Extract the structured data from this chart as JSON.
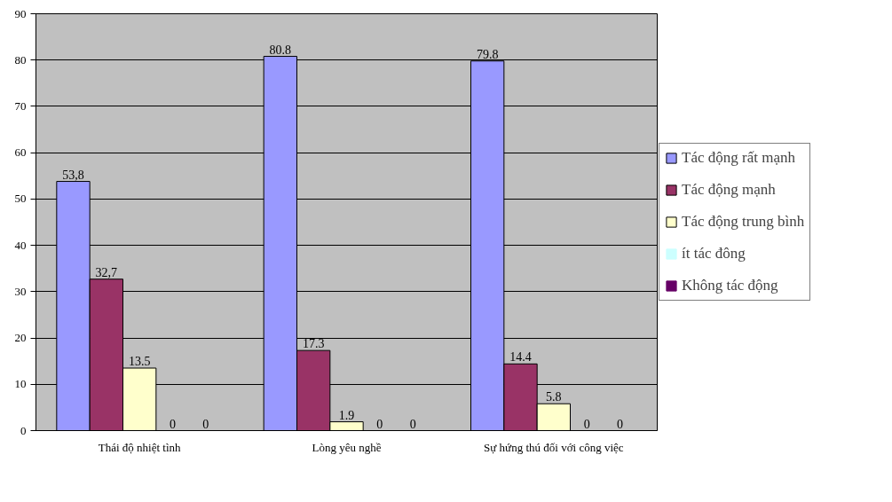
{
  "chart_data": {
    "type": "bar",
    "categories": [
      "Thái độ nhiệt tình",
      "Lòng yêu nghề",
      "Sự hứng thú đối với công việc"
    ],
    "series": [
      {
        "name": "Tác động rất mạnh",
        "color": "#9999ff",
        "values": [
          53.8,
          80.8,
          79.8
        ],
        "value_labels": [
          "53,8",
          "80.8",
          "79.8"
        ]
      },
      {
        "name": "Tác động mạnh",
        "color": "#993366",
        "values": [
          32.7,
          17.3,
          14.4
        ],
        "value_labels": [
          "32,7",
          "17.3",
          "14.4"
        ]
      },
      {
        "name": "Tác động trung bình",
        "color": "#ffffcc",
        "values": [
          13.5,
          1.9,
          5.8
        ],
        "value_labels": [
          "13.5",
          "1.9",
          "5.8"
        ]
      },
      {
        "name": "ít tác đông",
        "color": "#ccffff",
        "values": [
          0,
          0,
          0
        ],
        "value_labels": [
          "0",
          "0",
          "0"
        ]
      },
      {
        "name": "Không tác động",
        "color": "#660066",
        "values": [
          0,
          0,
          0
        ],
        "value_labels": [
          "0",
          "0",
          "0"
        ]
      }
    ],
    "ylim": [
      0,
      90
    ],
    "yticks": [
      0,
      10,
      20,
      30,
      40,
      50,
      60,
      70,
      80,
      90
    ],
    "grid": "y",
    "legend": "right"
  }
}
